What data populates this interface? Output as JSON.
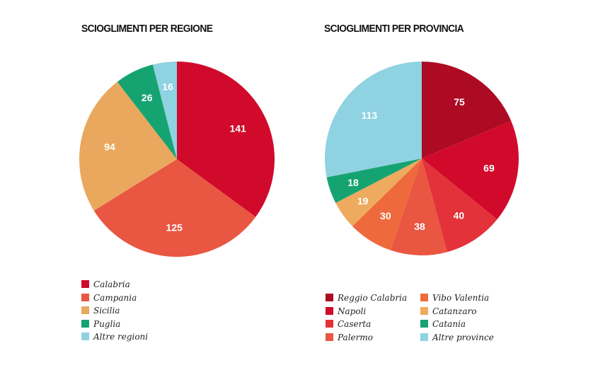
{
  "chart_data": [
    {
      "type": "pie",
      "title": "SCIOGLIMENTI PER REGIONE",
      "categories": [
        "Calabria",
        "Campania",
        "Sicilia",
        "Puglia",
        "Altre regioni"
      ],
      "values": [
        141,
        125,
        94,
        26,
        16
      ],
      "colors": [
        "#d10a2b",
        "#e95642",
        "#e9a85e",
        "#16a372",
        "#8fd2e2"
      ],
      "legend_position": "bottom-left"
    },
    {
      "type": "pie",
      "title": "SCIOGLIMENTI PER PROVINCIA",
      "categories": [
        "Reggio Calabria",
        "Napoli",
        "Caserta",
        "Palermo",
        "Vibo Valentia",
        "Catanzaro",
        "Catania",
        "Altre province"
      ],
      "values": [
        75,
        69,
        40,
        38,
        30,
        19,
        18,
        113
      ],
      "colors": [
        "#ad0a24",
        "#d10a2b",
        "#e3323a",
        "#e95642",
        "#ee6a3c",
        "#eeaa5e",
        "#16a372",
        "#8fd2e2"
      ],
      "legend_order": [
        "Reggio Calabria",
        "Napoli",
        "Caserta",
        "Palermo",
        "Vibo Valentia",
        "Catanzaro",
        "Catania",
        "Altre province"
      ],
      "legend_position": "bottom"
    }
  ]
}
